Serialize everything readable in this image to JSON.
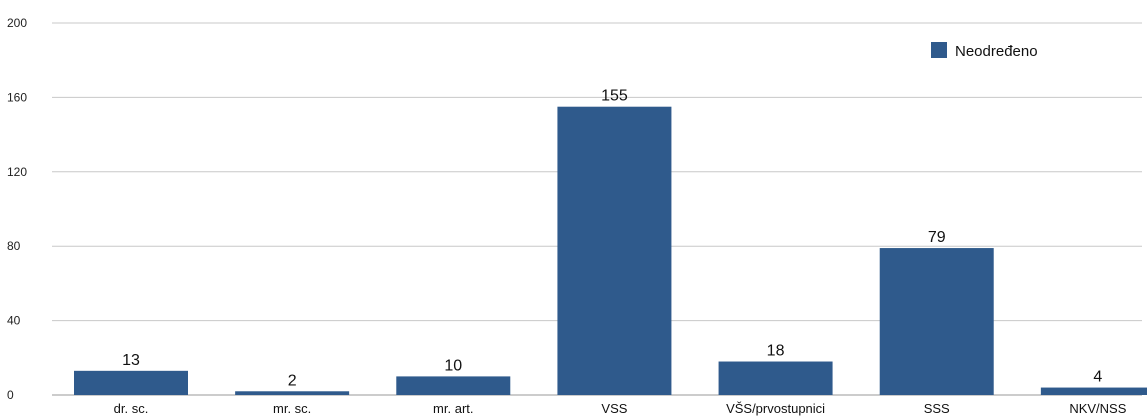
{
  "chart_data": {
    "type": "bar",
    "categories": [
      "dr. sc.",
      "mr. sc.",
      "mr. art.",
      "VSS",
      "VŠS/prvostupnici",
      "SSS",
      "NKV/NSS"
    ],
    "series": [
      {
        "name": "Neodređeno",
        "values": [
          13,
          2,
          10,
          155,
          18,
          79,
          4
        ],
        "color": "#2f5a8c"
      }
    ],
    "yticks": [
      0,
      40,
      80,
      120,
      160,
      200
    ],
    "ylim": [
      0,
      200
    ],
    "grid": true,
    "legend": "top-right",
    "title": "",
    "xlabel": "",
    "ylabel": ""
  }
}
